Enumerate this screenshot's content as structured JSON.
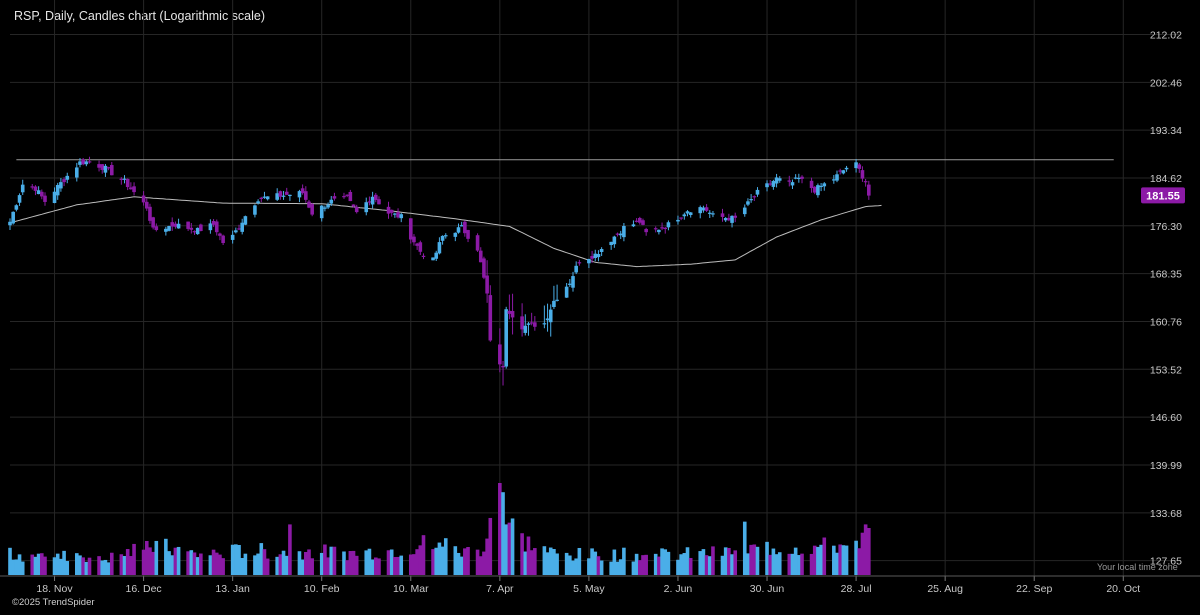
{
  "title": "RSP, Daily, Candles chart (Logarithmic scale)",
  "footer": "©2025 TrendSpider",
  "timezone_label": "Your local time zone",
  "colors": {
    "up": "#4aaee8",
    "down": "#8c1aa6",
    "price_badge": "#8c1aa6",
    "ma": "#bdbdbd",
    "resistance": "#9a9a9a",
    "grid": "#262626",
    "background": "#000000"
  },
  "chart_data": {
    "type": "candlestick",
    "scale": "log",
    "grid": true,
    "ticker": "RSP",
    "interval": "Daily",
    "last_price": "181.55",
    "y_ticks": [
      "212.02",
      "202.46",
      "193.34",
      "184.62",
      "176.30",
      "168.35",
      "160.76",
      "153.52",
      "146.60",
      "139.99",
      "133.68",
      "127.65"
    ],
    "ylim": [
      125.9,
      215.0
    ],
    "x_ticks": [
      {
        "label": "18. Nov",
        "date": "2024-11-18"
      },
      {
        "label": "16. Dec",
        "date": "2024-12-16"
      },
      {
        "label": "13. Jan",
        "date": "2025-01-13"
      },
      {
        "label": "10. Feb",
        "date": "2025-02-10"
      },
      {
        "label": "10. Mar",
        "date": "2025-03-10"
      },
      {
        "label": "7. Apr",
        "date": "2025-04-07"
      },
      {
        "label": "5. May",
        "date": "2025-05-05"
      },
      {
        "label": "2. Jun",
        "date": "2025-06-02"
      },
      {
        "label": "30. Jun",
        "date": "2025-06-30"
      },
      {
        "label": "28. Jul",
        "date": "2025-07-28"
      },
      {
        "label": "25. Aug",
        "date": "2025-08-25"
      },
      {
        "label": "22. Sep",
        "date": "2025-09-22"
      },
      {
        "label": "20. Oct",
        "date": "2025-10-20"
      }
    ],
    "xlim": [
      "2024-11-04",
      "2025-10-24"
    ],
    "resistance_line": {
      "value": 187.9,
      "from": "2024-11-06",
      "to": "2025-10-17"
    },
    "ma_keypoints": [
      [
        "2024-11-04",
        176.8
      ],
      [
        "2024-11-25",
        179.9
      ],
      [
        "2024-12-13",
        181.3
      ],
      [
        "2025-01-10",
        180.2
      ],
      [
        "2025-02-10",
        180.1
      ],
      [
        "2025-03-03",
        178.9
      ],
      [
        "2025-03-24",
        177.5
      ],
      [
        "2025-04-10",
        176.2
      ],
      [
        "2025-04-24",
        172.5
      ],
      [
        "2025-05-07",
        170.2
      ],
      [
        "2025-05-20",
        169.5
      ],
      [
        "2025-06-06",
        169.9
      ],
      [
        "2025-06-20",
        170.6
      ],
      [
        "2025-07-03",
        174.4
      ],
      [
        "2025-07-17",
        177.3
      ],
      [
        "2025-07-31",
        179.6
      ],
      [
        "2025-08-05",
        179.8
      ]
    ],
    "price_keypoints": [
      [
        "2024-11-04",
        177.0
      ],
      [
        "2024-11-08",
        183.5
      ],
      [
        "2024-11-12",
        182.8
      ],
      [
        "2024-11-15",
        180.5
      ],
      [
        "2024-11-22",
        185.0
      ],
      [
        "2024-11-26",
        187.4
      ],
      [
        "2024-11-29",
        187.6
      ],
      [
        "2024-12-04",
        186.3
      ],
      [
        "2024-12-10",
        184.0
      ],
      [
        "2024-12-17",
        179.5
      ],
      [
        "2024-12-19",
        175.5
      ],
      [
        "2024-12-26",
        176.5
      ],
      [
        "2025-01-02",
        175.5
      ],
      [
        "2025-01-07",
        176.5
      ],
      [
        "2025-01-10",
        173.5
      ],
      [
        "2025-01-13",
        174.5
      ],
      [
        "2025-01-17",
        178.0
      ],
      [
        "2025-01-21",
        181.0
      ],
      [
        "2025-01-28",
        181.5
      ],
      [
        "2025-02-04",
        182.0
      ],
      [
        "2025-02-07",
        178.5
      ],
      [
        "2025-02-13",
        180.5
      ],
      [
        "2025-02-18",
        181.0
      ],
      [
        "2025-02-21",
        178.5
      ],
      [
        "2025-02-26",
        181.5
      ],
      [
        "2025-03-03",
        178.5
      ],
      [
        "2025-03-07",
        177.8
      ],
      [
        "2025-03-10",
        174.5
      ],
      [
        "2025-03-13",
        172.0
      ],
      [
        "2025-03-17",
        170.5
      ],
      [
        "2025-03-20",
        174.5
      ],
      [
        "2025-03-26",
        176.0
      ],
      [
        "2025-03-31",
        172.5
      ],
      [
        "2025-04-03",
        165.0
      ],
      [
        "2025-04-04",
        157.5
      ],
      [
        "2025-04-08",
        153.5
      ],
      [
        "2025-04-09",
        163.0
      ],
      [
        "2025-04-14",
        160.0
      ],
      [
        "2025-04-21",
        160.5
      ],
      [
        "2025-04-24",
        164.0
      ],
      [
        "2025-04-29",
        167.0
      ],
      [
        "2025-05-02",
        170.5
      ],
      [
        "2025-05-07",
        171.5
      ],
      [
        "2025-05-13",
        174.5
      ],
      [
        "2025-05-16",
        176.0
      ],
      [
        "2025-05-21",
        177.0
      ],
      [
        "2025-05-23",
        175.0
      ],
      [
        "2025-05-30",
        176.5
      ],
      [
        "2025-06-05",
        179.0
      ],
      [
        "2025-06-10",
        179.5
      ],
      [
        "2025-06-13",
        178.0
      ],
      [
        "2025-06-20",
        177.5
      ],
      [
        "2025-06-27",
        182.0
      ],
      [
        "2025-07-03",
        184.5
      ],
      [
        "2025-07-07",
        183.5
      ],
      [
        "2025-07-10",
        184.5
      ],
      [
        "2025-07-15",
        182.5
      ],
      [
        "2025-07-21",
        184.5
      ],
      [
        "2025-07-25",
        186.5
      ],
      [
        "2025-07-28",
        187.0
      ],
      [
        "2025-07-31",
        184.0
      ],
      [
        "2025-08-01",
        181.55
      ]
    ],
    "volume_keypoints": [
      [
        "2024-11-04",
        0.22
      ],
      [
        "2024-11-11",
        0.22
      ],
      [
        "2024-11-18",
        0.18
      ],
      [
        "2024-11-25",
        0.24
      ],
      [
        "2024-12-02",
        0.16
      ],
      [
        "2024-12-09",
        0.22
      ],
      [
        "2024-12-16",
        0.3
      ],
      [
        "2024-12-20",
        0.32
      ],
      [
        "2025-01-02",
        0.22
      ],
      [
        "2025-01-15",
        0.26
      ],
      [
        "2025-02-03",
        0.26
      ],
      [
        "2025-02-20",
        0.24
      ],
      [
        "2025-03-07",
        0.28
      ],
      [
        "2025-03-14",
        0.34
      ],
      [
        "2025-03-25",
        0.24
      ],
      [
        "2025-04-02",
        0.3
      ],
      [
        "2025-04-07",
        0.85
      ],
      [
        "2025-04-10",
        0.55
      ],
      [
        "2025-04-15",
        0.36
      ],
      [
        "2025-04-25",
        0.22
      ],
      [
        "2025-05-12",
        0.22
      ],
      [
        "2025-05-30",
        0.22
      ],
      [
        "2025-06-16",
        0.24
      ],
      [
        "2025-06-30",
        0.3
      ],
      [
        "2025-07-15",
        0.3
      ],
      [
        "2025-07-28",
        0.34
      ],
      [
        "2025-08-01",
        0.46
      ]
    ],
    "volume_spikes": [
      [
        "2024-11-15",
        0.2
      ],
      [
        "2024-12-18",
        0.3
      ],
      [
        "2025-01-31",
        0.55
      ],
      [
        "2025-03-21",
        0.4
      ],
      [
        "2025-04-04",
        0.62
      ],
      [
        "2025-04-07",
        1.0
      ],
      [
        "2025-04-08",
        0.9
      ],
      [
        "2025-04-09",
        0.55
      ],
      [
        "2025-05-27",
        0.2
      ],
      [
        "2025-06-23",
        0.58
      ],
      [
        "2025-07-25",
        0.32
      ],
      [
        "2025-07-31",
        0.55
      ]
    ]
  }
}
